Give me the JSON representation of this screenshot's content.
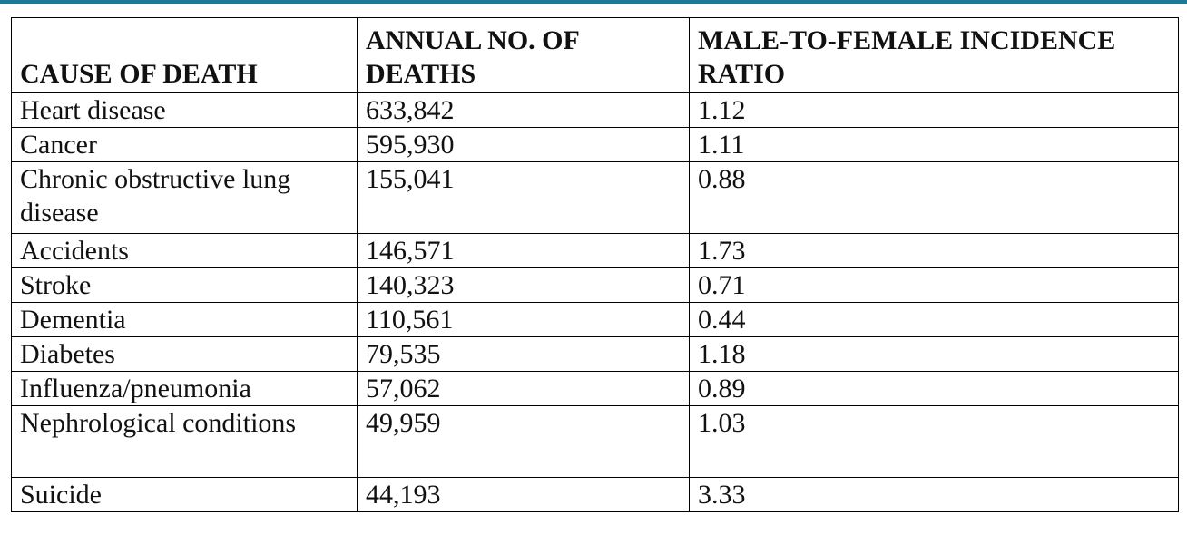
{
  "table": {
    "headers": [
      "CAUSE OF DEATH",
      "ANNUAL NO. OF DEATHS",
      "MALE-TO-FEMALE INCIDENCE RATIO"
    ],
    "rows": [
      [
        "Heart disease",
        "633,842",
        "1.12"
      ],
      [
        "Cancer",
        "595,930",
        "1.11"
      ],
      [
        "Chronic obstructive lung disease",
        "155,041",
        "0.88"
      ],
      [
        "Accidents",
        "146,571",
        "1.73"
      ],
      [
        "Stroke",
        "140,323",
        "0.71"
      ],
      [
        "Dementia",
        "110,561",
        "0.44"
      ],
      [
        "Diabetes",
        "79,535",
        "1.18"
      ],
      [
        "Influenza/pneumonia",
        "57,062",
        "0.89"
      ],
      [
        "Nephrological conditions",
        "49,959",
        "1.03"
      ],
      [
        "Suicide",
        "44,193",
        "3.33"
      ]
    ]
  }
}
